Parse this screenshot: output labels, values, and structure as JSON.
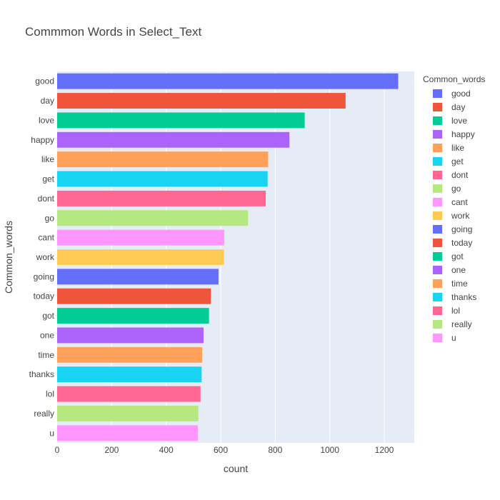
{
  "chart_data": {
    "type": "bar",
    "orientation": "horizontal",
    "title": "Commmon Words in Select_Text",
    "xlabel": "count",
    "ylabel": "Common_words",
    "legend_title": "Common_words",
    "legend_position": "right",
    "grid": true,
    "xlim": [
      0,
      1310
    ],
    "xticks": [
      0,
      200,
      400,
      600,
      800,
      1000,
      1200
    ],
    "categories": [
      "good",
      "day",
      "love",
      "happy",
      "like",
      "get",
      "dont",
      "go",
      "cant",
      "work",
      "going",
      "today",
      "got",
      "one",
      "time",
      "thanks",
      "lol",
      "really",
      "u"
    ],
    "values": [
      1251,
      1058,
      908,
      852,
      774,
      772,
      765,
      700,
      613,
      612,
      592,
      564,
      557,
      537,
      532,
      530,
      526,
      518,
      516
    ],
    "colors": [
      "#636efa",
      "#EF553B",
      "#00cc96",
      "#ab63fa",
      "#FFA15A",
      "#19d3f3",
      "#FF6692",
      "#B6E880",
      "#FF97FF",
      "#FECB52",
      "#636efa",
      "#EF553B",
      "#00cc96",
      "#ab63fa",
      "#FFA15A",
      "#19d3f3",
      "#FF6692",
      "#B6E880",
      "#FF97FF"
    ]
  }
}
